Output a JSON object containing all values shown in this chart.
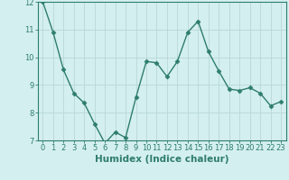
{
  "x": [
    0,
    1,
    2,
    3,
    4,
    5,
    6,
    7,
    8,
    9,
    10,
    11,
    12,
    13,
    14,
    15,
    16,
    17,
    18,
    19,
    20,
    21,
    22,
    23
  ],
  "y": [
    12.0,
    10.9,
    9.55,
    8.7,
    8.35,
    7.6,
    6.9,
    7.3,
    7.1,
    8.55,
    9.85,
    9.8,
    9.3,
    9.85,
    10.9,
    11.3,
    10.2,
    9.5,
    8.85,
    8.8,
    8.9,
    8.7,
    8.25,
    8.4
  ],
  "line_color": "#2e7d6e",
  "marker": "D",
  "markersize": 2.5,
  "linewidth": 1.0,
  "bg_color": "#d4efef",
  "grid_color": "#b8d8d8",
  "xlabel": "Humidex (Indice chaleur)",
  "ylim": [
    7,
    12
  ],
  "xlim_min": -0.5,
  "xlim_max": 23.5,
  "yticks": [
    7,
    8,
    9,
    10,
    11,
    12
  ],
  "xticks": [
    0,
    1,
    2,
    3,
    4,
    5,
    6,
    7,
    8,
    9,
    10,
    11,
    12,
    13,
    14,
    15,
    16,
    17,
    18,
    19,
    20,
    21,
    22,
    23
  ],
  "tick_fontsize": 6,
  "xlabel_fontsize": 7.5,
  "tick_color": "#2e7d6e",
  "axis_color": "#2e7d6e"
}
